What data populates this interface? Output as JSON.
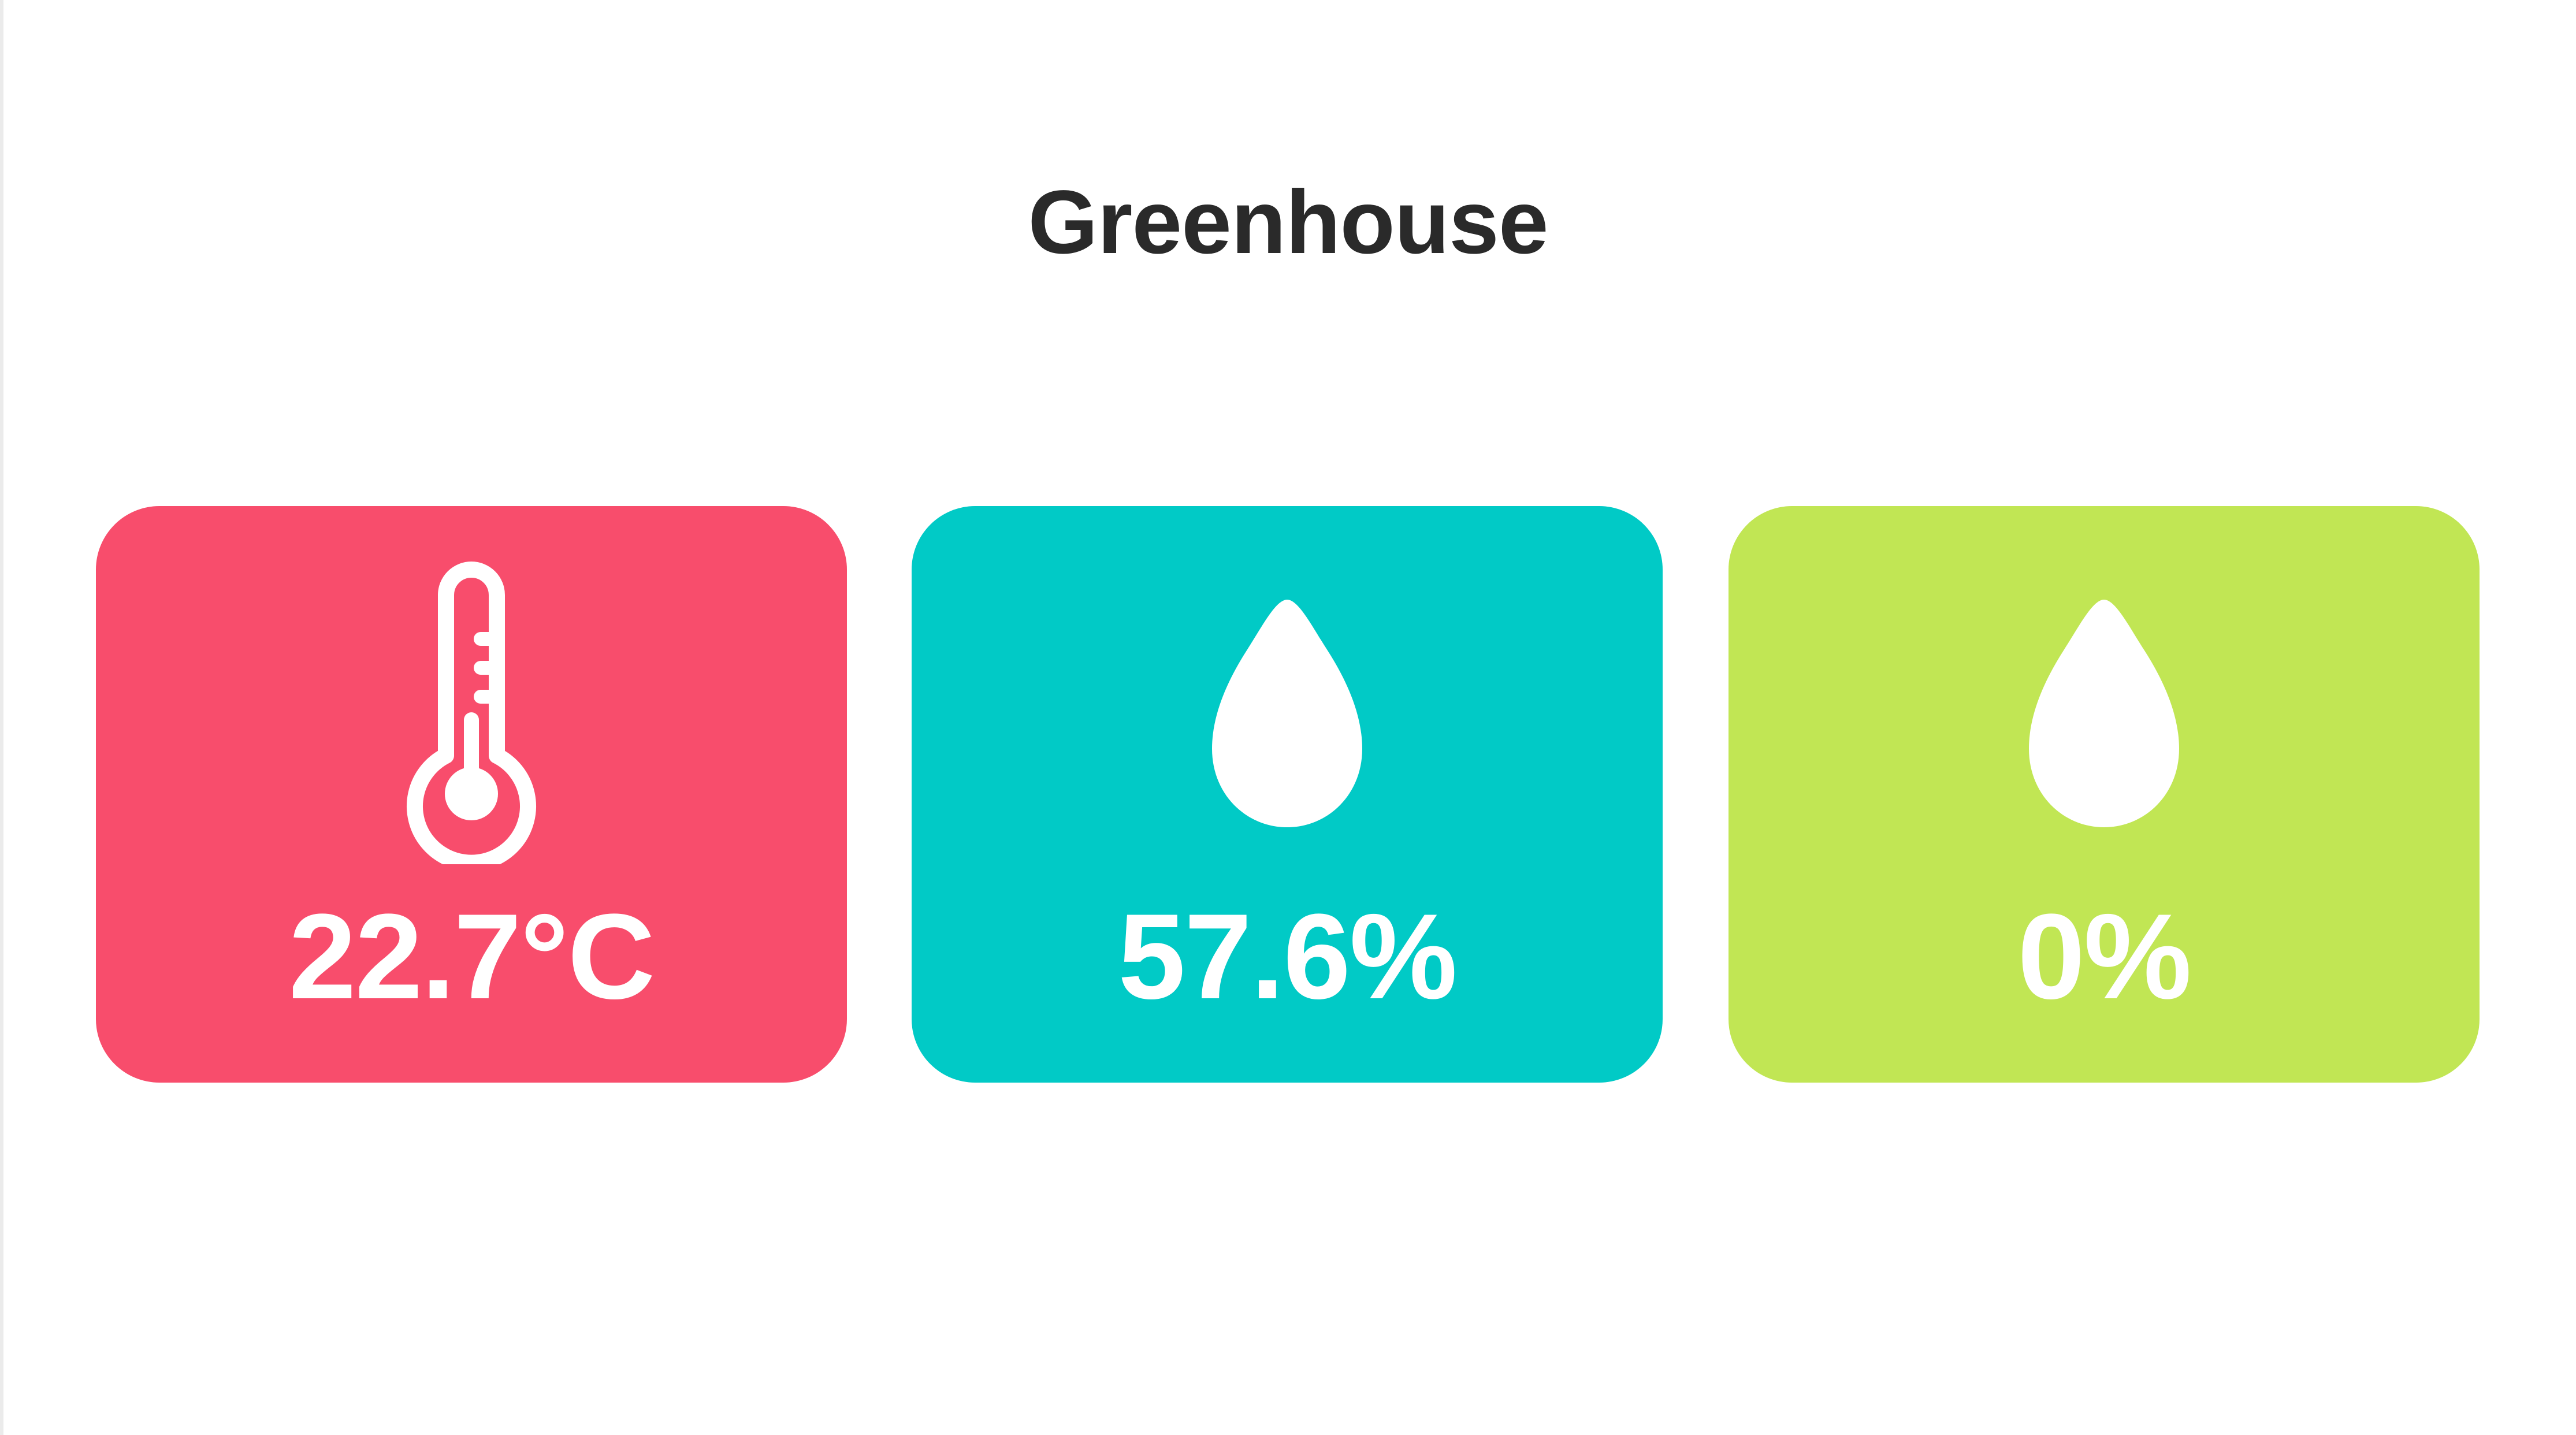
{
  "page": {
    "title": "Greenhouse"
  },
  "cards": [
    {
      "id": "temperature",
      "icon": "thermometer-icon",
      "value": "22.7°C",
      "color": "#f84d6c"
    },
    {
      "id": "humidity",
      "icon": "water-drop-icon",
      "value": "57.6%",
      "color": "#01cac6"
    },
    {
      "id": "soil-moisture",
      "icon": "water-drop-icon",
      "value": "0%",
      "color": "#c1e654"
    }
  ]
}
